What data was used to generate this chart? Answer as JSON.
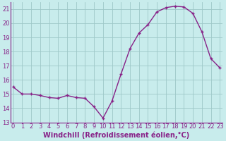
{
  "x": [
    0,
    1,
    2,
    3,
    4,
    5,
    6,
    7,
    8,
    9,
    10,
    11,
    12,
    13,
    14,
    15,
    16,
    17,
    18,
    19,
    20,
    21,
    22,
    23
  ],
  "y": [
    15.5,
    15.0,
    15.0,
    14.9,
    14.75,
    14.7,
    14.9,
    14.75,
    14.7,
    14.1,
    13.3,
    14.5,
    16.4,
    18.2,
    19.3,
    19.9,
    20.8,
    21.1,
    21.2,
    21.15,
    20.7,
    19.4,
    17.5,
    16.85
  ],
  "line_color": "#882288",
  "marker_color": "#882288",
  "bg_color": "#c8ecec",
  "grid_color": "#9ec8c8",
  "spine_color": "#882288",
  "xlabel": "Windchill (Refroidissement éolien,°C)",
  "ylim": [
    13,
    21.5
  ],
  "yticks": [
    13,
    14,
    15,
    16,
    17,
    18,
    19,
    20,
    21
  ],
  "xticks": [
    0,
    1,
    2,
    3,
    4,
    5,
    6,
    7,
    8,
    9,
    10,
    11,
    12,
    13,
    14,
    15,
    16,
    17,
    18,
    19,
    20,
    21,
    22,
    23
  ],
  "xlabel_fontsize": 7.0,
  "tick_fontsize": 6.0,
  "linewidth": 1.0,
  "markersize": 3.5,
  "marker": "+"
}
